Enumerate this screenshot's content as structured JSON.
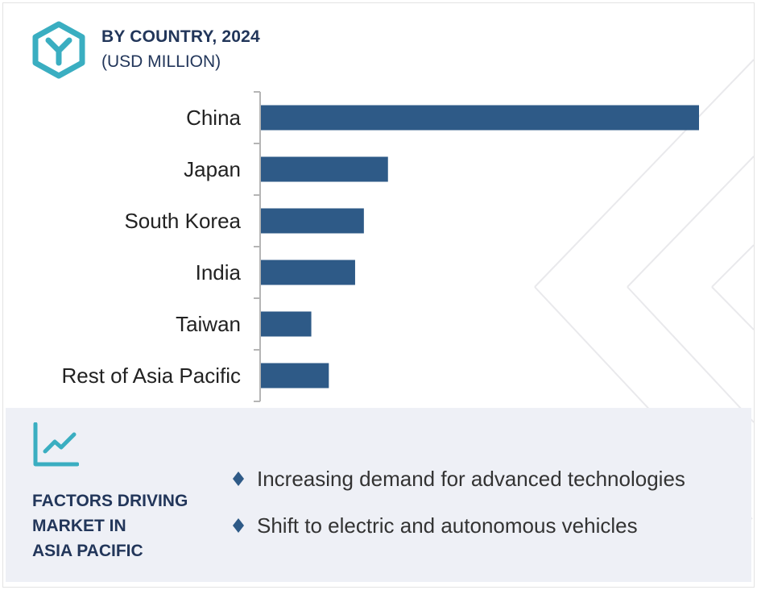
{
  "header": {
    "title": "BY COUNTRY, 2024",
    "subtitle": "(USD MILLION)"
  },
  "chart_data": {
    "type": "bar",
    "orientation": "horizontal",
    "title": "BY COUNTRY, 2024",
    "subtitle": "(USD MILLION)",
    "categories": [
      "China",
      "Japan",
      "South Korea",
      "India",
      "Taiwan",
      "Rest of Asia Pacific"
    ],
    "values": [
      100,
      29,
      23.5,
      21.5,
      11.5,
      15.5
    ],
    "value_note_scale": "relative (no axis values printed)",
    "xlim": [
      0,
      100
    ],
    "bar_color": "#2e5a87",
    "grid": false,
    "legend": "none"
  },
  "factors": {
    "heading_lines": [
      "FACTORS DRIVING",
      "MARKET IN",
      "ASIA PACIFIC"
    ],
    "items": [
      "Increasing demand for advanced technologies",
      "Shift to electric and autonomous vehicles"
    ]
  },
  "colors": {
    "navy": "#22365a",
    "bar": "#2e5a87",
    "teal": "#3aaec1",
    "panel": "#eef0f6"
  },
  "icons": {
    "logo": "hexagon-y-logo-icon",
    "trend": "line-chart-trend-icon",
    "bullet": "diamond-bullet-icon"
  }
}
